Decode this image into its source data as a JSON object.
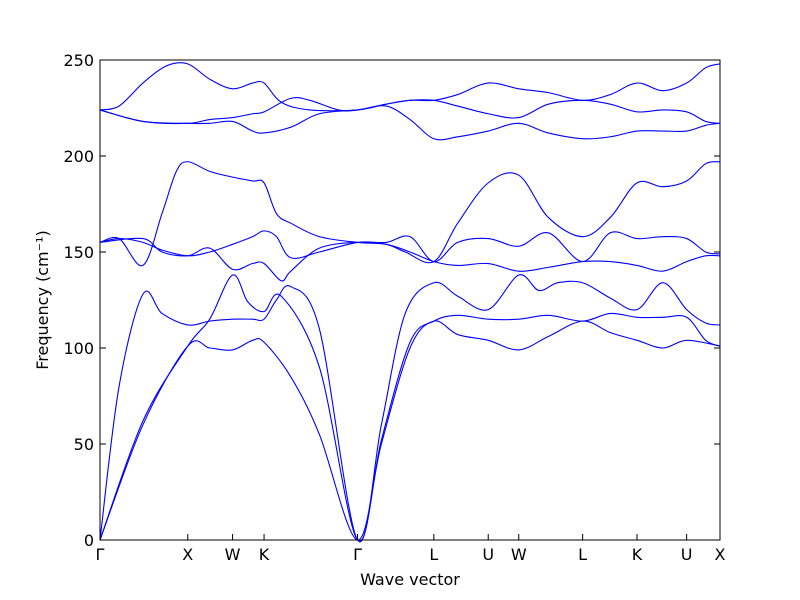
{
  "chart_data": {
    "type": "line",
    "xlabel": "Wave vector",
    "ylabel": "Frequency (cm⁻¹)",
    "ylim": [
      0,
      250
    ],
    "yticks": [
      0,
      50,
      100,
      150,
      200,
      250
    ],
    "xlim": [
      0,
      6.5
    ],
    "kpoints": [
      {
        "label": "Γ",
        "x": 0.0
      },
      {
        "label": "X",
        "x": 0.92
      },
      {
        "label": "W",
        "x": 1.39
      },
      {
        "label": "K",
        "x": 1.72
      },
      {
        "label": "Γ",
        "x": 2.7
      },
      {
        "label": "L",
        "x": 3.5
      },
      {
        "label": "U",
        "x": 4.07
      },
      {
        "label": "W",
        "x": 4.39
      },
      {
        "label": "L",
        "x": 5.06
      },
      {
        "label": "K",
        "x": 5.63
      },
      {
        "label": "U",
        "x": 6.15
      },
      {
        "label": "X",
        "x": 6.5
      }
    ],
    "grid": false,
    "series_color": "#0000ff",
    "series": [
      {
        "points": [
          [
            0,
            0
          ],
          [
            0.45,
            60
          ],
          [
            0.92,
            101
          ],
          [
            1.15,
            100
          ],
          [
            1.39,
            99
          ],
          [
            1.6,
            104
          ],
          [
            1.72,
            103
          ],
          [
            2.0,
            85
          ],
          [
            2.3,
            55
          ],
          [
            2.7,
            0
          ],
          [
            2.95,
            50
          ],
          [
            3.25,
            100
          ],
          [
            3.5,
            114
          ],
          [
            3.75,
            107
          ],
          [
            4.07,
            104
          ],
          [
            4.39,
            99
          ],
          [
            4.7,
            106
          ],
          [
            5.06,
            114
          ],
          [
            5.35,
            108
          ],
          [
            5.63,
            104
          ],
          [
            5.9,
            100
          ],
          [
            6.15,
            104
          ],
          [
            6.5,
            101
          ]
        ]
      },
      {
        "points": [
          [
            0,
            0
          ],
          [
            0.45,
            62
          ],
          [
            0.92,
            101
          ],
          [
            1.15,
            115
          ],
          [
            1.39,
            138
          ],
          [
            1.55,
            124
          ],
          [
            1.72,
            119
          ],
          [
            1.9,
            127
          ],
          [
            2.3,
            90
          ],
          [
            2.7,
            0
          ],
          [
            2.95,
            52
          ],
          [
            3.25,
            103
          ],
          [
            3.5,
            114
          ],
          [
            3.75,
            117
          ],
          [
            4.07,
            115
          ],
          [
            4.39,
            115
          ],
          [
            4.7,
            117
          ],
          [
            5.06,
            114
          ],
          [
            5.35,
            118
          ],
          [
            5.63,
            116
          ],
          [
            5.9,
            116
          ],
          [
            6.15,
            116
          ],
          [
            6.35,
            104
          ],
          [
            6.5,
            101
          ]
        ]
      },
      {
        "points": [
          [
            0,
            0
          ],
          [
            0.2,
            80
          ],
          [
            0.45,
            128
          ],
          [
            0.65,
            118
          ],
          [
            0.92,
            112
          ],
          [
            1.15,
            114
          ],
          [
            1.39,
            115
          ],
          [
            1.6,
            115
          ],
          [
            1.72,
            115
          ],
          [
            1.85,
            125
          ],
          [
            2.0,
            132
          ],
          [
            2.3,
            110
          ],
          [
            2.7,
            0
          ],
          [
            2.95,
            60
          ],
          [
            3.2,
            118
          ],
          [
            3.5,
            134
          ],
          [
            3.75,
            127
          ],
          [
            4.07,
            120
          ],
          [
            4.39,
            138
          ],
          [
            4.6,
            130
          ],
          [
            4.8,
            134
          ],
          [
            5.06,
            134
          ],
          [
            5.35,
            126
          ],
          [
            5.63,
            120
          ],
          [
            5.9,
            134
          ],
          [
            6.15,
            120
          ],
          [
            6.35,
            113
          ],
          [
            6.5,
            112
          ]
        ]
      },
      {
        "points": [
          [
            0,
            155
          ],
          [
            0.2,
            157
          ],
          [
            0.45,
            143
          ],
          [
            0.65,
            170
          ],
          [
            0.8,
            192
          ],
          [
            0.92,
            197
          ],
          [
            1.15,
            192
          ],
          [
            1.39,
            189
          ],
          [
            1.6,
            187
          ],
          [
            1.72,
            186
          ],
          [
            1.85,
            170
          ],
          [
            2.0,
            165
          ],
          [
            2.3,
            158
          ],
          [
            2.7,
            155
          ],
          [
            3.0,
            154
          ],
          [
            3.2,
            150
          ],
          [
            3.5,
            145
          ],
          [
            3.75,
            165
          ],
          [
            4.07,
            186
          ],
          [
            4.39,
            190
          ],
          [
            4.7,
            168
          ],
          [
            5.06,
            158
          ],
          [
            5.35,
            168
          ],
          [
            5.63,
            186
          ],
          [
            5.9,
            184
          ],
          [
            6.15,
            187
          ],
          [
            6.35,
            196
          ],
          [
            6.5,
            197
          ]
        ]
      },
      {
        "points": [
          [
            0,
            155
          ],
          [
            0.2,
            157
          ],
          [
            0.45,
            155
          ],
          [
            0.65,
            151
          ],
          [
            0.92,
            148
          ],
          [
            1.15,
            150
          ],
          [
            1.39,
            154
          ],
          [
            1.6,
            158
          ],
          [
            1.72,
            161
          ],
          [
            1.85,
            158
          ],
          [
            2.0,
            147
          ],
          [
            2.3,
            150
          ],
          [
            2.7,
            155
          ],
          [
            3.0,
            155
          ],
          [
            3.25,
            158
          ],
          [
            3.5,
            145
          ],
          [
            3.75,
            155
          ],
          [
            4.07,
            157
          ],
          [
            4.39,
            153
          ],
          [
            4.7,
            160
          ],
          [
            5.06,
            145
          ],
          [
            5.35,
            160
          ],
          [
            5.63,
            157
          ],
          [
            5.9,
            158
          ],
          [
            6.15,
            157
          ],
          [
            6.35,
            150
          ],
          [
            6.5,
            149
          ]
        ]
      },
      {
        "points": [
          [
            0,
            155
          ],
          [
            0.45,
            157
          ],
          [
            0.65,
            150
          ],
          [
            0.92,
            148
          ],
          [
            1.15,
            152
          ],
          [
            1.39,
            141
          ],
          [
            1.6,
            144
          ],
          [
            1.72,
            144
          ],
          [
            1.9,
            135
          ],
          [
            2.0,
            140
          ],
          [
            2.3,
            152
          ],
          [
            2.7,
            155
          ],
          [
            3.0,
            154
          ],
          [
            3.25,
            150
          ],
          [
            3.5,
            145
          ],
          [
            3.75,
            143
          ],
          [
            4.07,
            144
          ],
          [
            4.39,
            140
          ],
          [
            4.7,
            142
          ],
          [
            5.06,
            145
          ],
          [
            5.35,
            145
          ],
          [
            5.63,
            143
          ],
          [
            5.9,
            140
          ],
          [
            6.15,
            145
          ],
          [
            6.35,
            148
          ],
          [
            6.5,
            148
          ]
        ]
      },
      {
        "points": [
          [
            0,
            224
          ],
          [
            0.45,
            218
          ],
          [
            0.92,
            217
          ],
          [
            1.15,
            217
          ],
          [
            1.39,
            218
          ],
          [
            1.6,
            213
          ],
          [
            1.72,
            212
          ],
          [
            2.0,
            215
          ],
          [
            2.3,
            222
          ],
          [
            2.7,
            224
          ],
          [
            3.0,
            226
          ],
          [
            3.25,
            219
          ],
          [
            3.5,
            209
          ],
          [
            3.75,
            210
          ],
          [
            4.07,
            213
          ],
          [
            4.39,
            217
          ],
          [
            4.7,
            212
          ],
          [
            5.06,
            209
          ],
          [
            5.35,
            210
          ],
          [
            5.63,
            213
          ],
          [
            5.9,
            213
          ],
          [
            6.15,
            213
          ],
          [
            6.35,
            216
          ],
          [
            6.5,
            217
          ]
        ]
      },
      {
        "points": [
          [
            0,
            224
          ],
          [
            0.45,
            218
          ],
          [
            0.92,
            217
          ],
          [
            1.15,
            219
          ],
          [
            1.39,
            220
          ],
          [
            1.6,
            222
          ],
          [
            1.72,
            223
          ],
          [
            2.0,
            230
          ],
          [
            2.2,
            229
          ],
          [
            2.5,
            224
          ],
          [
            2.7,
            224
          ],
          [
            3.0,
            227
          ],
          [
            3.25,
            229
          ],
          [
            3.5,
            229
          ],
          [
            3.75,
            226
          ],
          [
            4.07,
            222
          ],
          [
            4.39,
            220
          ],
          [
            4.7,
            227
          ],
          [
            5.06,
            229
          ],
          [
            5.35,
            227
          ],
          [
            5.63,
            223
          ],
          [
            5.9,
            224
          ],
          [
            6.15,
            223
          ],
          [
            6.35,
            218
          ],
          [
            6.5,
            217
          ]
        ]
      },
      {
        "points": [
          [
            0,
            224
          ],
          [
            0.2,
            226
          ],
          [
            0.45,
            238
          ],
          [
            0.7,
            247
          ],
          [
            0.92,
            248
          ],
          [
            1.15,
            240
          ],
          [
            1.39,
            235
          ],
          [
            1.6,
            238
          ],
          [
            1.72,
            238
          ],
          [
            1.9,
            228
          ],
          [
            2.2,
            224
          ],
          [
            2.7,
            224
          ],
          [
            3.0,
            227
          ],
          [
            3.25,
            229
          ],
          [
            3.5,
            229
          ],
          [
            3.75,
            232
          ],
          [
            4.07,
            238
          ],
          [
            4.39,
            235
          ],
          [
            4.7,
            233
          ],
          [
            5.06,
            229
          ],
          [
            5.35,
            232
          ],
          [
            5.63,
            238
          ],
          [
            5.9,
            234
          ],
          [
            6.15,
            238
          ],
          [
            6.35,
            246
          ],
          [
            6.5,
            248
          ]
        ]
      }
    ]
  }
}
